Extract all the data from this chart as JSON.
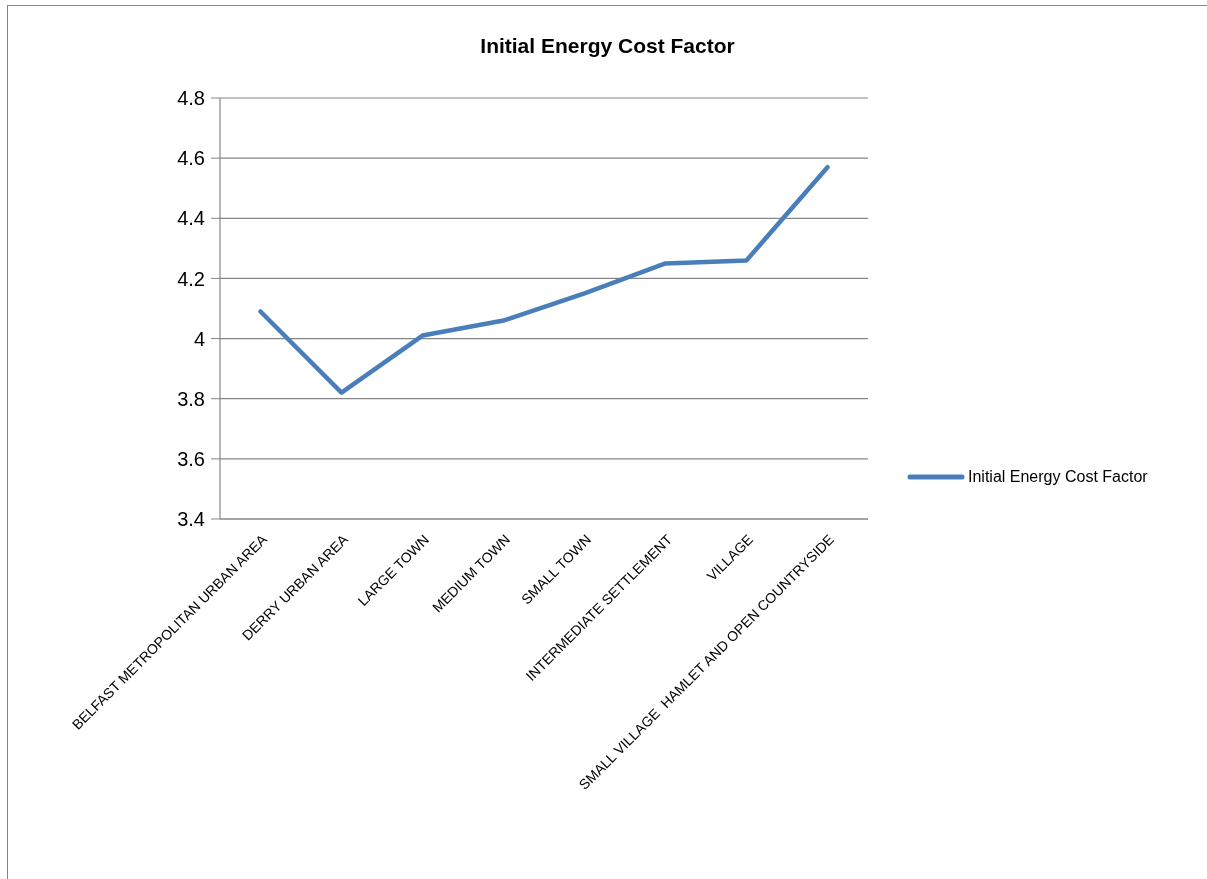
{
  "chart_data": {
    "type": "line",
    "title": "Initial Energy Cost Factor",
    "categories": [
      "BELFAST METROPOLITAN URBAN AREA",
      "DERRY URBAN AREA",
      "LARGE TOWN",
      "MEDIUM TOWN",
      "SMALL TOWN",
      "INTERMEDIATE SETTLEMENT",
      "VILLAGE",
      "SMALL VILLAGE  HAMLET AND OPEN COUNTRYSIDE"
    ],
    "series": [
      {
        "name": "Initial Energy Cost Factor",
        "color": "#4a7ebb",
        "values": [
          4.09,
          3.82,
          4.01,
          4.06,
          4.15,
          4.25,
          4.26,
          4.57
        ]
      }
    ],
    "ylim": [
      3.4,
      4.8
    ],
    "yticks": [
      3.4,
      3.6,
      3.8,
      4,
      4.2,
      4.4,
      4.6,
      4.8
    ],
    "grid": "y",
    "legend": "right"
  }
}
